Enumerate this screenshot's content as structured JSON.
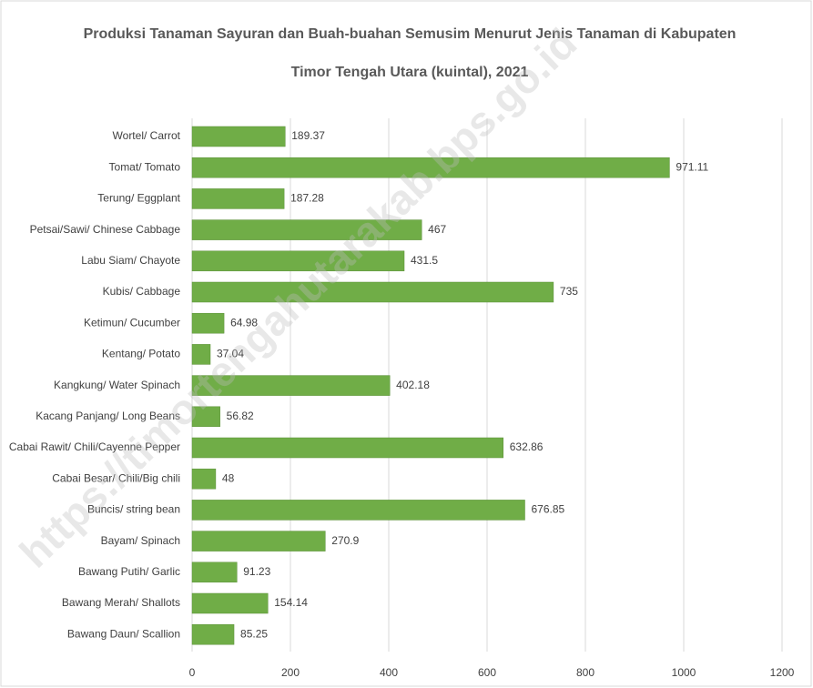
{
  "chart_data": {
    "type": "barh",
    "title": [
      "Produksi Tanaman Sayuran dan Buah-buahan Semusim Menurut Jenis Tanaman di Kabupaten",
      "Timor Tengah Utara (kuintal), 2021"
    ],
    "watermark": "https://timortengahutarakab.bps.go.id",
    "categories": [
      "Wortel/ Carrot",
      "Tomat/ Tomato",
      "Terung/ Eggplant",
      "Petsai/Sawi/ Chinese Cabbage",
      "Labu Siam/ Chayote",
      "Kubis/ Cabbage",
      "Ketimun/ Cucumber",
      "Kentang/ Potato",
      "Kangkung/ Water Spinach",
      "Kacang Panjang/ Long Beans",
      "Cabai Rawit/ Chili/Cayenne Pepper",
      "Cabai Besar/ Chili/Big chili",
      "Buncis/ string bean",
      "Bayam/ Spinach",
      "Bawang Putih/ Garlic",
      "Bawang Merah/ Shallots",
      "Bawang Daun/ Scallion"
    ],
    "values": [
      189.37,
      971.11,
      187.28,
      467,
      431.5,
      735,
      64.98,
      37.04,
      402.18,
      56.82,
      632.86,
      48,
      676.85,
      270.9,
      91.23,
      154.14,
      85.25
    ],
    "color": "#70ad47",
    "xlim": [
      0,
      1200
    ],
    "xticks": [
      0,
      200,
      400,
      600,
      800,
      1000,
      1200
    ],
    "grid": true
  }
}
